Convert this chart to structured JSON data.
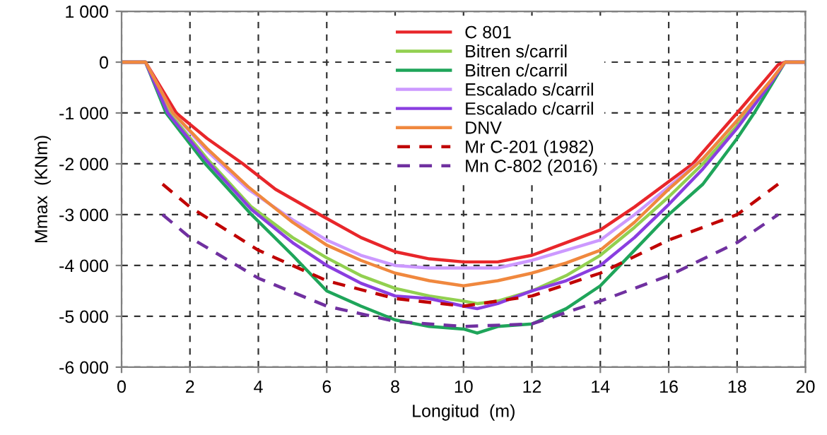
{
  "chart_data": {
    "type": "line",
    "xlabel": "Longitud  (m)",
    "ylabel": "Mmax  (KNm)",
    "xlim": [
      0,
      20
    ],
    "xticks": [
      0,
      2,
      4,
      6,
      8,
      10,
      12,
      14,
      16,
      18,
      20
    ],
    "ylim": [
      -6000,
      1000
    ],
    "yticks": [
      {
        "value": -6000,
        "label": "-6 000"
      },
      {
        "value": -5000,
        "label": "-5 000"
      },
      {
        "value": -4000,
        "label": "-4 000"
      },
      {
        "value": -3000,
        "label": "-3 000"
      },
      {
        "value": -2000,
        "label": "-2 000"
      },
      {
        "value": -1000,
        "label": "-1 000"
      },
      0,
      {
        "value": 1000,
        "label": "1 000"
      }
    ],
    "grid": true,
    "legend": "top",
    "marker": "none",
    "series": [
      {
        "name": "C 801",
        "color": "#e8262a",
        "line_style": "solid",
        "x": [
          0,
          0.7,
          1.6,
          2.5,
          3.55,
          4.5,
          5.8,
          7,
          8,
          9,
          10,
          11,
          12,
          13,
          14,
          15,
          16.7,
          18,
          19.2,
          19.4,
          20
        ],
        "values": [
          0,
          0,
          -1000,
          -1500,
          -2000,
          -2500,
          -3000,
          -3450,
          -3730,
          -3870,
          -3930,
          -3930,
          -3800,
          -3550,
          -3300,
          -2850,
          -2000,
          -1000,
          -50,
          0,
          0
        ]
      },
      {
        "name": "Bitren s/carril",
        "color": "#92d050",
        "line_style": "solid",
        "x": [
          0,
          0.7,
          1.4,
          2.5,
          3.8,
          5,
          6,
          7,
          8,
          9,
          10,
          10.4,
          11,
          12,
          13,
          14,
          15,
          16,
          17,
          18,
          19
        ],
        "values": [
          0,
          0,
          -1000,
          -1900,
          -2850,
          -3450,
          -3850,
          -4200,
          -4450,
          -4600,
          -4700,
          -4750,
          -4700,
          -4500,
          -4200,
          -3800,
          -3250,
          -2650,
          -2000,
          -1250,
          -400
        ]
      },
      {
        "name": "Bitren c/carril",
        "color": "#1fa55a",
        "line_style": "solid",
        "x": [
          0,
          0.7,
          1.3,
          2.45,
          3.8,
          5,
          6,
          7,
          8,
          9,
          10,
          10.4,
          11,
          12,
          13,
          14,
          15,
          16,
          17,
          18,
          18.5,
          19,
          19.4,
          20
        ],
        "values": [
          0,
          0,
          -1000,
          -2000,
          -3000,
          -3800,
          -4500,
          -4800,
          -5070,
          -5200,
          -5250,
          -5330,
          -5200,
          -5150,
          -4850,
          -4400,
          -3700,
          -3000,
          -2400,
          -1500,
          -1000,
          -450,
          0,
          0
        ]
      },
      {
        "name": "Escalado s/carril",
        "color": "#cc99ff",
        "line_style": "solid",
        "x": [
          0,
          0.7,
          1.5,
          2.5,
          3.7,
          5,
          6,
          7,
          8,
          9,
          10,
          11,
          12,
          13,
          14,
          15,
          16,
          17,
          18,
          19,
          19.4,
          20
        ],
        "values": [
          0,
          0,
          -1000,
          -1750,
          -2500,
          -3100,
          -3500,
          -3800,
          -4000,
          -4050,
          -4050,
          -4050,
          -3900,
          -3700,
          -3500,
          -3000,
          -2450,
          -1900,
          -1150,
          -350,
          0,
          0
        ]
      },
      {
        "name": "Escalado c/carril",
        "color": "#8a3ee0",
        "line_style": "solid",
        "x": [
          0,
          0.7,
          1.35,
          2.5,
          3.8,
          5,
          6,
          7,
          8,
          9,
          10,
          10.4,
          11,
          12,
          13,
          14,
          15,
          16,
          17,
          18,
          19,
          19.4,
          20
        ],
        "values": [
          0,
          0,
          -1000,
          -1950,
          -2900,
          -3550,
          -4000,
          -4350,
          -4600,
          -4650,
          -4800,
          -4850,
          -4750,
          -4500,
          -4300,
          -4000,
          -3450,
          -2800,
          -2100,
          -1300,
          -400,
          0,
          0
        ]
      },
      {
        "name": "DNV",
        "color": "#f0883e",
        "line_style": "solid",
        "x": [
          0,
          0.7,
          1.5,
          2.5,
          3.7,
          5,
          6,
          7,
          8,
          9,
          10,
          11,
          12,
          13,
          14,
          15,
          16,
          17,
          18,
          19,
          19.4,
          20
        ],
        "values": [
          0,
          0,
          -1000,
          -1700,
          -2450,
          -3150,
          -3600,
          -3900,
          -4150,
          -4300,
          -4400,
          -4300,
          -4150,
          -3950,
          -3700,
          -3150,
          -2500,
          -1900,
          -1150,
          -350,
          0,
          0
        ]
      },
      {
        "name": "Mr C-201 (1982)",
        "color": "#c00000",
        "line_style": "dashed",
        "x": [
          1.2,
          2,
          4,
          6,
          8,
          10,
          12,
          14,
          16,
          18,
          19.2
        ],
        "values": [
          -2400,
          -2850,
          -3700,
          -4300,
          -4650,
          -4800,
          -4600,
          -4150,
          -3500,
          -3000,
          -2400
        ]
      },
      {
        "name": "Mn C-802 (2016)",
        "color": "#7030a0",
        "line_style": "dashed",
        "x": [
          1.2,
          2,
          4,
          6,
          8,
          10,
          12,
          14,
          16,
          18,
          19.2
        ],
        "values": [
          -3000,
          -3450,
          -4250,
          -4800,
          -5100,
          -5200,
          -5150,
          -4700,
          -4200,
          -3550,
          -3000
        ]
      }
    ]
  }
}
